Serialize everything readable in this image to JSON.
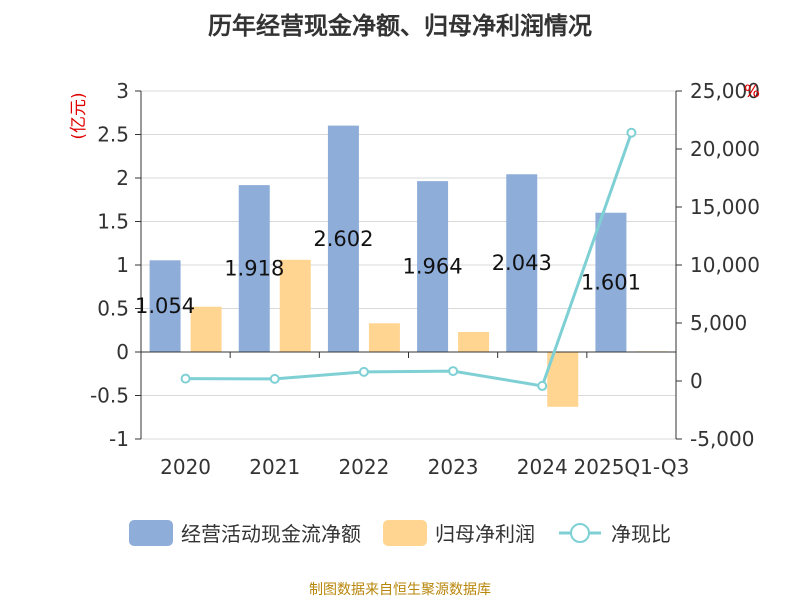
{
  "colors": {
    "ocf": "#8eadd9",
    "profit": "#ffd591",
    "ratio": "#7fd0d4",
    "grid": "#d9d9d9",
    "axis": "#333333",
    "unit": "#e00000",
    "source": "#b8860b"
  },
  "chart_data": {
    "type": "bar",
    "title": "历年经营现金净额、归母净利润情况",
    "categories": [
      "2020",
      "2021",
      "2022",
      "2023",
      "2024",
      "2025Q1-Q3"
    ],
    "left_unit": "(亿元)",
    "right_unit": "%",
    "left_axis": {
      "min": -1,
      "max": 3,
      "ticks": [
        3,
        2.5,
        2,
        1.5,
        1,
        0.5,
        0,
        -0.5,
        -1
      ],
      "tick_labels": [
        "3",
        "2.5",
        "2",
        "1.5",
        "1",
        "0.5",
        "0",
        "-0.5",
        "-1"
      ]
    },
    "right_axis": {
      "min": -5000,
      "max": 25000,
      "ticks": [
        25000,
        20000,
        15000,
        10000,
        5000,
        0,
        -5000
      ],
      "tick_labels": [
        "25,000",
        "20,000",
        "15,000",
        "10,000",
        "5,000",
        "0",
        "-5,000"
      ]
    },
    "series": [
      {
        "name": "经营活动现金流净额",
        "type": "bar",
        "axis": "left",
        "values": [
          1.054,
          1.918,
          2.602,
          1.964,
          2.043,
          1.601
        ],
        "labels": [
          "1.054",
          "1.918",
          "2.602",
          "1.964",
          "2.043",
          "1.601"
        ]
      },
      {
        "name": "归母净利润",
        "type": "bar",
        "axis": "left",
        "values": [
          0.52,
          1.06,
          0.33,
          0.23,
          -0.63,
          0.008
        ]
      },
      {
        "name": "净现比",
        "type": "line",
        "axis": "right",
        "values": [
          203,
          181,
          788,
          854,
          -424,
          21400
        ]
      }
    ],
    "grid": true,
    "legend_position": "bottom"
  },
  "legend": {
    "ocf": "经营活动现金流净额",
    "profit": "归母净利润",
    "ratio": "净现比"
  },
  "source_note": "制图数据来自恒生聚源数据库"
}
